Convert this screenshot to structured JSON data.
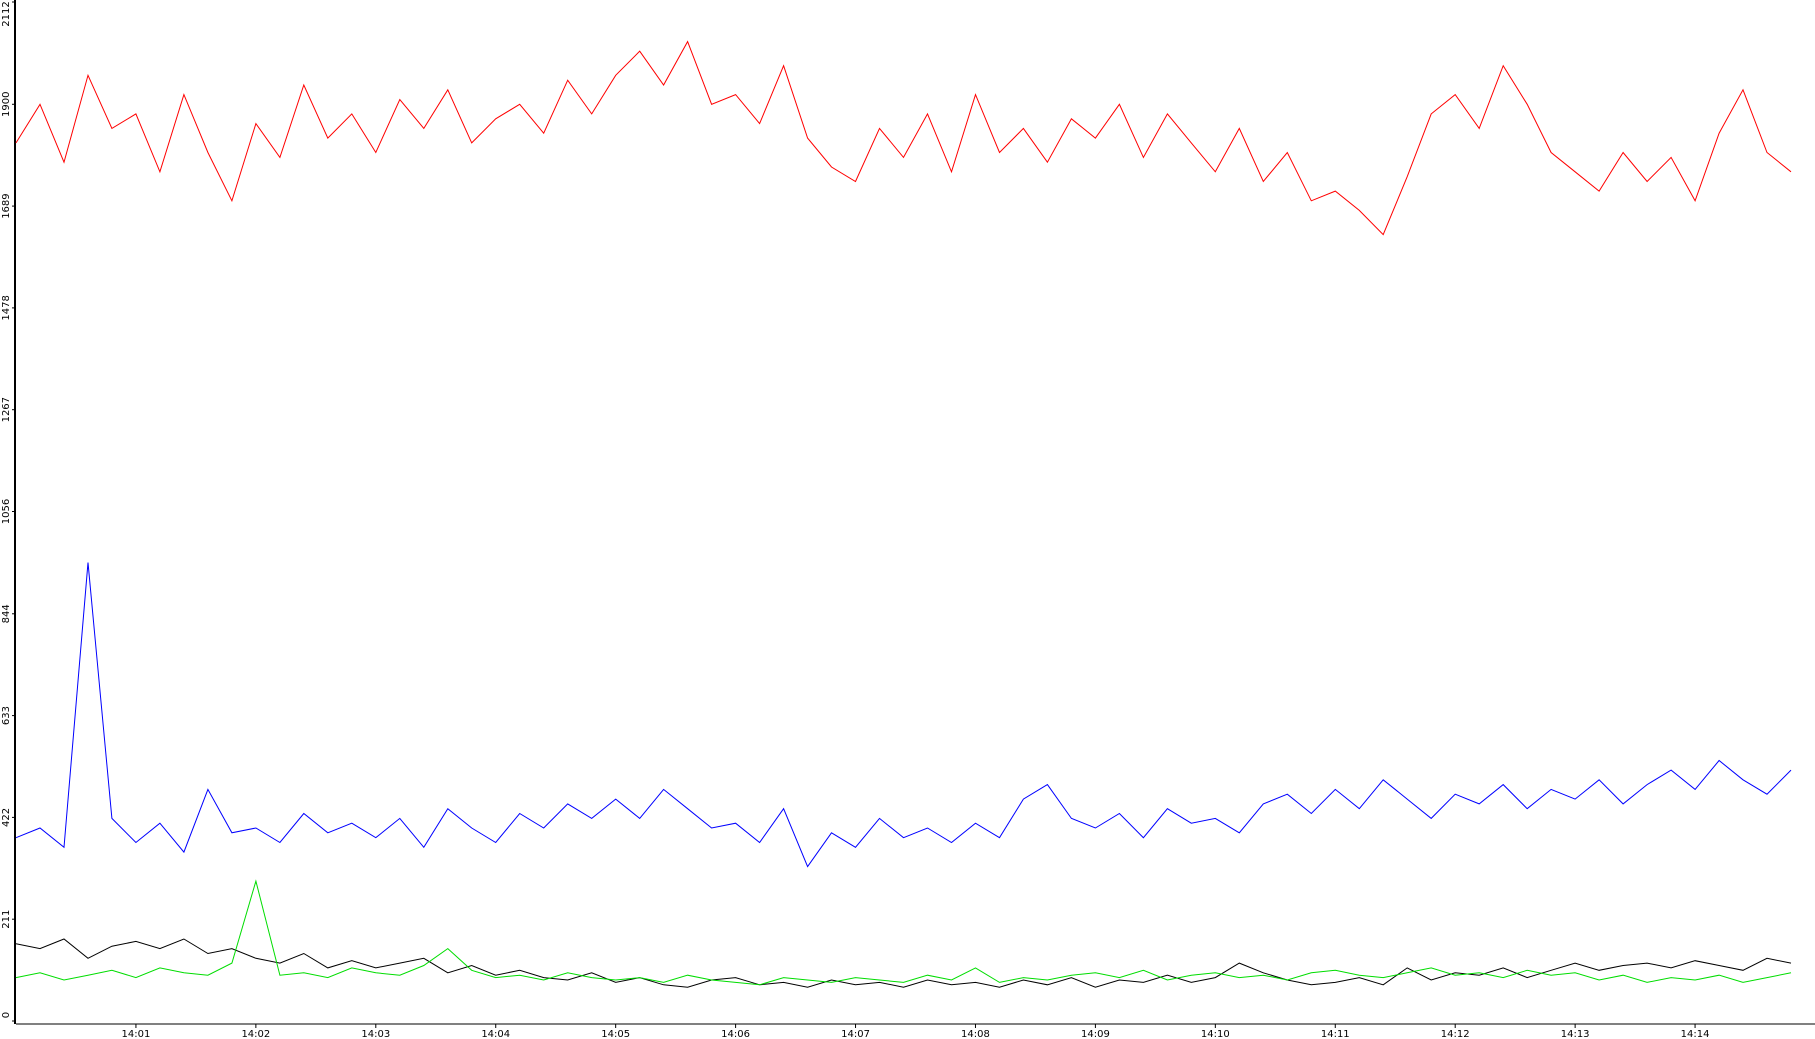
{
  "chart_data": {
    "type": "line",
    "x": [
      0,
      0.2,
      0.4,
      0.6,
      0.8,
      1,
      1.2,
      1.4,
      1.6,
      1.8,
      2,
      2.2,
      2.4,
      2.6,
      2.8,
      3,
      3.2,
      3.4,
      3.6,
      3.8,
      4,
      4.2,
      4.4,
      4.6,
      4.8,
      5,
      5.2,
      5.4,
      5.6,
      5.8,
      6,
      6.2,
      6.4,
      6.6,
      6.8,
      7,
      7.2,
      7.4,
      7.6,
      7.8,
      8,
      8.2,
      8.4,
      8.6,
      8.8,
      9,
      9.2,
      9.4,
      9.6,
      9.8,
      10,
      10.2,
      10.4,
      10.6,
      10.8,
      11,
      11.2,
      11.4,
      11.6,
      11.8,
      12,
      12.2,
      12.4,
      12.6,
      12.8,
      13,
      13.2,
      13.4,
      13.6,
      13.8,
      14,
      14.2,
      14.4,
      14.6,
      14.8
    ],
    "series": [
      {
        "color": "#ff0000",
        "values": [
          1820,
          1900,
          1780,
          1960,
          1850,
          1880,
          1760,
          1920,
          1800,
          1700,
          1860,
          1790,
          1940,
          1830,
          1880,
          1800,
          1910,
          1850,
          1930,
          1820,
          1870,
          1900,
          1840,
          1950,
          1880,
          1960,
          2010,
          1940,
          2030,
          1900,
          1920,
          1860,
          1980,
          1830,
          1770,
          1740,
          1850,
          1790,
          1880,
          1760,
          1920,
          1800,
          1850,
          1780,
          1870,
          1830,
          1900,
          1790,
          1880,
          1820,
          1760,
          1850,
          1740,
          1800,
          1700,
          1720,
          1680,
          1630,
          1750,
          1880,
          1920,
          1850,
          1980,
          1900,
          1800,
          1760,
          1720,
          1800,
          1740,
          1790,
          1700,
          1840,
          1930,
          1800,
          1760
        ]
      },
      {
        "color": "#0000ff",
        "values": [
          380,
          400,
          360,
          950,
          420,
          370,
          410,
          350,
          480,
          390,
          400,
          370,
          430,
          390,
          410,
          380,
          420,
          360,
          440,
          400,
          370,
          430,
          400,
          450,
          420,
          460,
          420,
          480,
          440,
          400,
          410,
          370,
          440,
          320,
          390,
          360,
          420,
          380,
          400,
          370,
          410,
          380,
          460,
          490,
          420,
          400,
          430,
          380,
          440,
          410,
          420,
          390,
          450,
          470,
          430,
          480,
          440,
          500,
          460,
          420,
          470,
          450,
          490,
          440,
          480,
          460,
          500,
          450,
          490,
          520,
          480,
          540,
          500,
          470,
          520
        ]
      },
      {
        "color": "#000000",
        "values": [
          160,
          150,
          170,
          130,
          155,
          165,
          150,
          170,
          140,
          150,
          130,
          120,
          140,
          110,
          125,
          110,
          120,
          130,
          100,
          115,
          95,
          105,
          90,
          85,
          100,
          80,
          90,
          75,
          70,
          85,
          90,
          75,
          80,
          70,
          85,
          75,
          80,
          70,
          85,
          75,
          80,
          70,
          85,
          75,
          90,
          70,
          85,
          80,
          95,
          80,
          90,
          120,
          100,
          85,
          75,
          80,
          90,
          75,
          110,
          85,
          100,
          95,
          110,
          90,
          105,
          120,
          105,
          115,
          120,
          110,
          125,
          115,
          105,
          130,
          120
        ]
      },
      {
        "color": "#00dd00",
        "values": [
          90,
          100,
          85,
          95,
          105,
          90,
          110,
          100,
          95,
          120,
          290,
          95,
          100,
          90,
          110,
          100,
          95,
          115,
          150,
          105,
          90,
          95,
          85,
          100,
          90,
          85,
          90,
          80,
          95,
          85,
          80,
          75,
          90,
          85,
          80,
          90,
          85,
          80,
          95,
          85,
          110,
          80,
          90,
          85,
          95,
          100,
          90,
          105,
          85,
          95,
          100,
          90,
          95,
          85,
          100,
          105,
          95,
          90,
          100,
          110,
          95,
          100,
          90,
          105,
          95,
          100,
          85,
          95,
          80,
          90,
          85,
          95,
          80,
          90,
          100
        ]
      }
    ],
    "xlim": [
      0,
      15
    ],
    "xticks": [
      {
        "value": 1,
        "label": "14:01"
      },
      {
        "value": 2,
        "label": "14:02"
      },
      {
        "value": 3,
        "label": "14:03"
      },
      {
        "value": 4,
        "label": "14:04"
      },
      {
        "value": 5,
        "label": "14:05"
      },
      {
        "value": 6,
        "label": "14:06"
      },
      {
        "value": 7,
        "label": "14:07"
      },
      {
        "value": 8,
        "label": "14:08"
      },
      {
        "value": 9,
        "label": "14:09"
      },
      {
        "value": 10,
        "label": "14:10"
      },
      {
        "value": 11,
        "label": "14:11"
      },
      {
        "value": 12,
        "label": "14:12"
      },
      {
        "value": 13,
        "label": "14:13"
      },
      {
        "value": 14,
        "label": "14:14"
      }
    ],
    "ylim": [
      0,
      2112
    ],
    "yticks": [
      0,
      211,
      422,
      633,
      844,
      1056,
      1267,
      1478,
      1689,
      1900,
      2112
    ]
  }
}
